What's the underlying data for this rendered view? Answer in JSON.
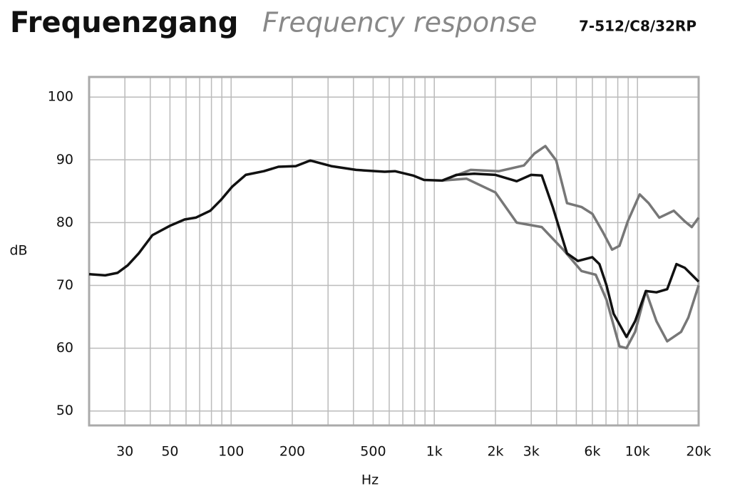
{
  "chart_data": {
    "type": "line",
    "title": "Frequenzgang",
    "subtitle": "Frequency response",
    "model": "7-512/C8/32RP",
    "xlabel": "Hz",
    "ylabel": "dB",
    "xscale": "log",
    "grid": true,
    "xlim": [
      20,
      20000
    ],
    "ylim": [
      47.7,
      103.2
    ],
    "xticks": [
      30,
      50,
      100,
      200,
      500,
      {
        "value": 1000,
        "label": "1k"
      },
      {
        "value": 2000,
        "label": "2k"
      },
      {
        "value": 3000,
        "label": "3k"
      },
      {
        "value": 6000,
        "label": "6k"
      },
      {
        "value": 10000,
        "label": "10k"
      },
      {
        "value": 20000,
        "label": "20k"
      }
    ],
    "xgrid_minor": [
      40,
      60,
      70,
      80,
      90,
      300,
      400,
      600,
      700,
      800,
      900,
      4000,
      5000,
      7000,
      8000,
      9000
    ],
    "yticks": [
      50,
      60,
      70,
      80,
      90,
      100
    ],
    "series": [
      {
        "color": "#777777",
        "x": [
          1093,
          1510,
          2080,
          2760,
          3110,
          3520,
          3980,
          4500,
          5300,
          6000,
          6750,
          7500,
          8150,
          8960,
          10250,
          11350,
          12800,
          15100,
          17100,
          18500,
          20000
        ],
        "values": [
          86.7,
          88.4,
          88.2,
          89.1,
          91,
          92.2,
          89.9,
          83.1,
          82.5,
          81.4,
          78.5,
          75.7,
          76.3,
          80.2,
          84.5,
          83.1,
          80.8,
          81.9,
          80.2,
          79.3,
          80.8
        ]
      },
      {
        "color": "#777777",
        "x": [
          1093,
          1440,
          2000,
          2544,
          3380,
          4310,
          5300,
          6230,
          7040,
          8150,
          8830,
          9740,
          11000,
          12400,
          14000,
          16400,
          17800,
          20000
        ],
        "values": [
          86.7,
          87,
          84.8,
          80,
          79.3,
          75.7,
          72.3,
          71.7,
          67.7,
          60.3,
          60,
          62.6,
          69.1,
          64.3,
          61.1,
          62.6,
          64.9,
          70
        ]
      },
      {
        "color": "#111111",
        "x": [
          20,
          24,
          27.6,
          31,
          35.1,
          41,
          50,
          59,
          67,
          79,
          89,
          101,
          118,
          145,
          171,
          208,
          245,
          311,
          412,
          570,
          640,
          786,
          890,
          1093,
          1285,
          1571,
          2000,
          2544,
          2995,
          3381,
          3826,
          4502,
          5090,
          5990,
          6494,
          7040,
          7630,
          8830,
          9740,
          11000,
          12400,
          14000,
          15560,
          17100,
          20000
        ],
        "values": [
          71.8,
          71.6,
          72,
          73.2,
          75.1,
          78,
          79.5,
          80.5,
          80.8,
          81.9,
          83.6,
          85.7,
          87.6,
          88.2,
          88.9,
          89,
          89.9,
          89,
          88.4,
          88.1,
          88.2,
          87.5,
          86.8,
          86.7,
          87.6,
          87.8,
          87.6,
          86.6,
          87.6,
          87.5,
          82.5,
          75.1,
          73.9,
          74.5,
          73.4,
          70,
          65.5,
          61.8,
          64.3,
          69.1,
          68.9,
          69.4,
          73.4,
          72.8,
          70.6
        ]
      }
    ]
  }
}
